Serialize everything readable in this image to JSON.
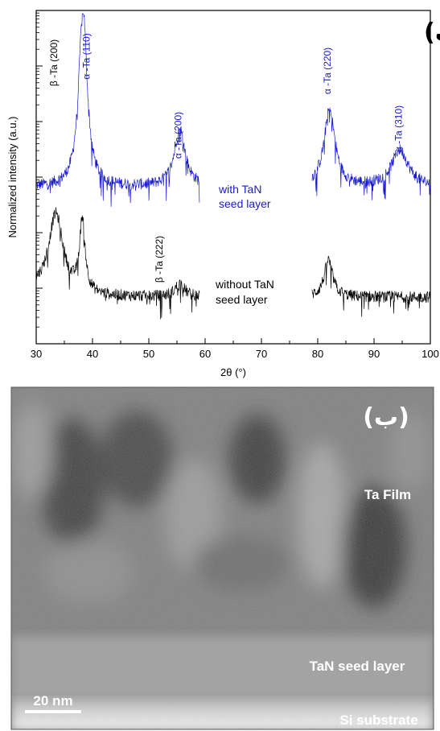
{
  "chart_data": {
    "type": "line",
    "panel_label": "(الف)",
    "xlabel": "2θ (°)",
    "ylabel": "Normalized intensity (a.u.)",
    "xlim": [
      30,
      100
    ],
    "x_ticks": [
      "30",
      "40",
      "50",
      "60",
      "70",
      "80",
      "90",
      "100"
    ],
    "y_scale": "log",
    "grid": false,
    "gap_x_range": [
      59,
      79
    ],
    "series": [
      {
        "name": "with TaN seed layer",
        "color": "#1a1acc",
        "name_lines": [
          "with TaN",
          "seed layer"
        ],
        "baseline": 0.47,
        "peaks": [
          {
            "center": 38.3,
            "height": 0.54,
            "width": 0.9
          },
          {
            "center": 55.5,
            "height": 0.17,
            "width": 1.2
          },
          {
            "center": 82.1,
            "height": 0.23,
            "width": 1.2
          },
          {
            "center": 94.6,
            "height": 0.11,
            "width": 1.8
          }
        ]
      },
      {
        "name": "without TaN seed layer",
        "color": "#000000",
        "name_lines": [
          "without TaN",
          "seed layer"
        ],
        "baseline": 0.14,
        "peaks": [
          {
            "center": 33.5,
            "height": 0.24,
            "width": 1.6
          },
          {
            "center": 38.2,
            "height": 0.22,
            "width": 0.6
          },
          {
            "center": 55.5,
            "height": 0.04,
            "width": 1.0
          },
          {
            "center": 81.9,
            "height": 0.11,
            "width": 0.9
          }
        ]
      }
    ],
    "annotations": [
      {
        "text": "β -Ta (200)",
        "x": 33.7,
        "color": "#000000"
      },
      {
        "text": "α -Ta (110)",
        "x": 39.5,
        "color": "#1a1acc"
      },
      {
        "text": "α -Ta (200)",
        "x": 55.8,
        "color": "#1a1acc"
      },
      {
        "text": "α -Ta (220)",
        "x": 82.3,
        "color": "#1a1acc"
      },
      {
        "text": "α -Ta (310)",
        "x": 94.9,
        "color": "#1a1acc"
      },
      {
        "text": "β -Ta (222)",
        "x": 52.4,
        "color": "#000000"
      }
    ]
  },
  "tem_panel": {
    "panel_label": "(ب)",
    "labels": {
      "film": "Ta Film",
      "seed": "TaN seed layer",
      "substrate": "Si substrate"
    },
    "scale_bar_label": "20 nm"
  }
}
